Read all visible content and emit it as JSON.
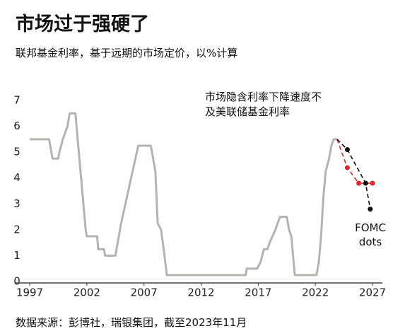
{
  "chart_data": {
    "type": "line",
    "title": "市场过于强硬了",
    "subtitle": "联邦基金利率，基于远期的市场定价，以%计算",
    "annotation": "市场隐含利率下降速度不及美联储基金利率",
    "source": "数据来源：彭博社，瑞银集团，截至2023年11月",
    "xlim": [
      1997,
      2027
    ],
    "xticks": [
      1997,
      2002,
      2007,
      2012,
      2017,
      2022,
      2027
    ],
    "ylim": [
      0,
      7
    ],
    "yticks": [
      0,
      1,
      2,
      3,
      4,
      5,
      6,
      7
    ],
    "grid": false,
    "series": [
      {
        "color": "#b5b3ad",
        "dashed": false,
        "markers": false,
        "x": [
          1997.0,
          1998.7,
          1998.8,
          1999.0,
          1999.5,
          1999.6,
          1999.9,
          2000.3,
          2000.5,
          2001.0,
          2001.1,
          2001.3,
          2001.5,
          2001.7,
          2001.9,
          2002.0,
          2002.9,
          2003.0,
          2003.5,
          2003.6,
          2004.5,
          2004.6,
          2005.0,
          2005.5,
          2006.0,
          2006.5,
          2007.6,
          2007.8,
          2008.0,
          2008.2,
          2008.5,
          2008.8,
          2009.0,
          2015.9,
          2016.0,
          2016.9,
          2017.2,
          2017.5,
          2017.8,
          2018.0,
          2018.5,
          2018.9,
          2019.5,
          2019.7,
          2019.9,
          2020.2,
          2022.1,
          2022.3,
          2022.5,
          2022.7,
          2022.9,
          2023.2,
          2023.4,
          2023.6,
          2023.9
        ],
        "values": [
          5.5,
          5.5,
          5.25,
          4.75,
          4.75,
          5.0,
          5.5,
          6.0,
          6.5,
          6.5,
          6.0,
          5.0,
          4.0,
          3.0,
          2.0,
          1.75,
          1.75,
          1.25,
          1.25,
          1.0,
          1.0,
          1.25,
          2.25,
          3.25,
          4.25,
          5.25,
          5.25,
          4.75,
          4.25,
          2.25,
          2.0,
          1.0,
          0.25,
          0.25,
          0.5,
          0.5,
          0.75,
          1.25,
          1.25,
          1.5,
          2.0,
          2.5,
          2.5,
          2.0,
          1.75,
          0.25,
          0.25,
          0.75,
          1.75,
          3.25,
          4.25,
          4.75,
          5.25,
          5.5,
          5.5
        ]
      },
      {
        "color": "#e0262b",
        "dashed": true,
        "markers": true,
        "x": [
          2023.9,
          2024.8,
          2025.8,
          2027.0
        ],
        "values": [
          5.5,
          4.4,
          3.8,
          3.8
        ]
      },
      {
        "name": "FOMC dots",
        "color": "#111111",
        "dashed": true,
        "markers": true,
        "x": [
          2023.9,
          2024.8,
          2026.4,
          2026.8
        ],
        "values": [
          5.5,
          5.1,
          3.8,
          2.8
        ]
      }
    ]
  }
}
